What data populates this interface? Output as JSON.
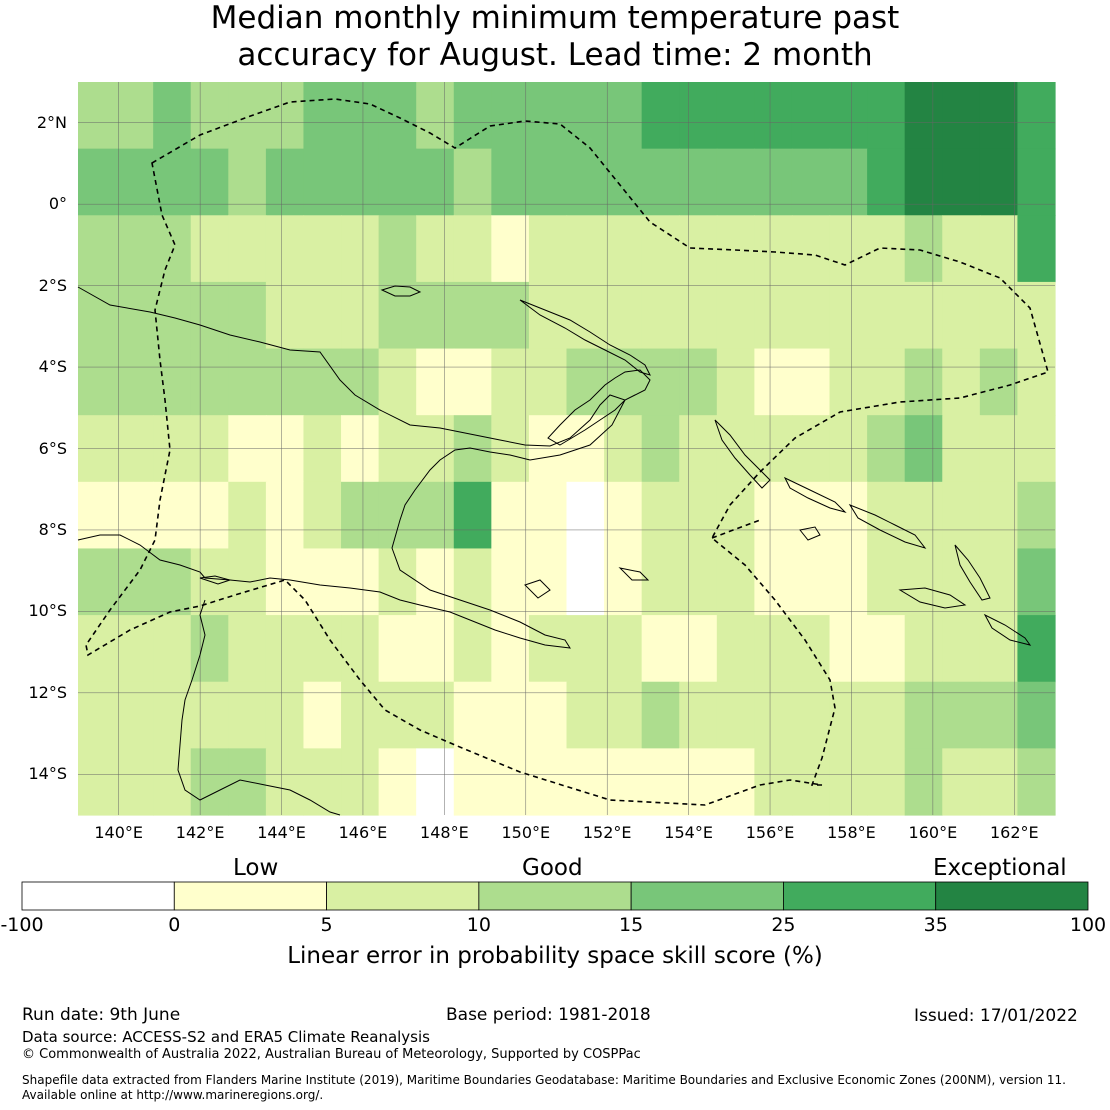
{
  "title": {
    "line1": "Median monthly minimum temperature past",
    "line2": "accuracy for August. Lead time: 2 month"
  },
  "map": {
    "region": "Papua New Guinea",
    "lon_range": [
      139,
      163
    ],
    "lat_range": [
      -15,
      3
    ],
    "lat_ticks": [
      "2°N",
      "0°",
      "2°S",
      "4°S",
      "6°S",
      "8°S",
      "10°S",
      "12°S",
      "14°S"
    ],
    "lon_ticks": [
      "140°E",
      "142°E",
      "144°E",
      "146°E",
      "148°E",
      "150°E",
      "152°E",
      "154°E",
      "156°E",
      "158°E",
      "160°E",
      "162°E"
    ],
    "gridlines": true,
    "boundary_style": "dashed EEZ outline",
    "skill_grid": [
      "33433344434444455555556665",
      "44443444443444444444456665",
      "33322222322122222222223225",
      "33333222333322222222222222",
      "33333333211223333211223232",
      "22221121223211232222234222",
      "11112123335110122211122223",
      "33322111212110122211122224",
      "22232222112122211222112225",
      "22222212221112232222223334",
      "22233222101111111122223223"
    ]
  },
  "colorbar": {
    "categories": [
      "Low",
      "Good",
      "Exceptional"
    ],
    "ticks": [
      "-100",
      "0",
      "5",
      "10",
      "15",
      "25",
      "35",
      "100"
    ],
    "bins": [
      {
        "range": "-100 to 0",
        "color": "#ffffff"
      },
      {
        "range": "0 to 5",
        "color": "#ffffcc"
      },
      {
        "range": "5 to 10",
        "color": "#d9f0a3"
      },
      {
        "range": "10 to 15",
        "color": "#addd8e"
      },
      {
        "range": "15 to 25",
        "color": "#78c679"
      },
      {
        "range": "25 to 35",
        "color": "#41ab5d"
      },
      {
        "range": "35 to 100",
        "color": "#238443"
      }
    ],
    "label": "Linear error in probability space skill score (%)"
  },
  "footer": {
    "run_date": "Run date: 9th June",
    "base_period": "Base period: 1981-2018",
    "issued": "Issued: 17/01/2022",
    "data_source": "Data source: ACCESS-S2 and ERA5 Climate Reanalysis",
    "copyright": "© Commonwealth of Australia 2022, Australian Bureau of Meteorology, Supported by COSPPac",
    "shapefile_line1": "Shapefile data extracted from Flanders Marine Institute (2019), Maritime Boundaries Geodatabase: Maritime Boundaries and Exclusive Economic Zones (200NM), version 11.",
    "shapefile_line2": "Available online at http://www.marineregions.org/."
  }
}
